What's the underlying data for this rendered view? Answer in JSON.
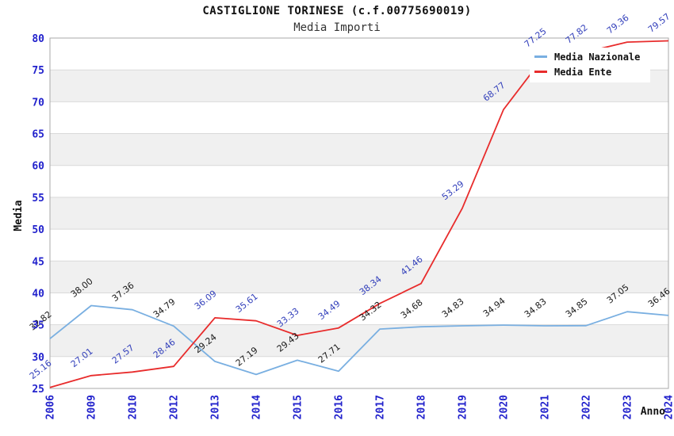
{
  "chart_data": {
    "type": "line",
    "title": "CASTIGLIONE TORINESE (c.f.00775690019)",
    "subtitle": "Media Importi",
    "xlabel": "Anno",
    "ylabel": "Media",
    "x": [
      "2006",
      "2009",
      "2010",
      "2012",
      "2013",
      "2014",
      "2015",
      "2016",
      "2017",
      "2018",
      "2019",
      "2020",
      "2021",
      "2022",
      "2023",
      "2024"
    ],
    "ylim": [
      25,
      80
    ],
    "ytick_step": 5,
    "grid": "horizontal-bands-alternating",
    "legend_position": "top-right",
    "series": [
      {
        "name": "Media Nazionale",
        "color": "#79afe1",
        "label_color": "#1a1a1a",
        "values": [
          32.82,
          38.0,
          37.36,
          34.79,
          29.24,
          27.19,
          29.43,
          27.71,
          34.32,
          34.68,
          34.83,
          34.94,
          34.83,
          34.85,
          37.05,
          36.46
        ]
      },
      {
        "name": "Media Ente",
        "color": "#e82c2c",
        "label_color": "#3340bb",
        "values": [
          25.16,
          27.01,
          27.57,
          28.46,
          36.09,
          35.61,
          33.33,
          34.49,
          38.34,
          41.46,
          53.29,
          68.77,
          77.25,
          77.82,
          79.36,
          79.57
        ]
      }
    ],
    "style": {
      "tick_color": "#2222cc",
      "band_color": "#f0f0f0",
      "grid_color": "#d9d9d9",
      "border_color": "#a8a8a8",
      "title_color": "#111111",
      "subtitle_color": "#333333",
      "axis_title_color": "#111111"
    }
  }
}
